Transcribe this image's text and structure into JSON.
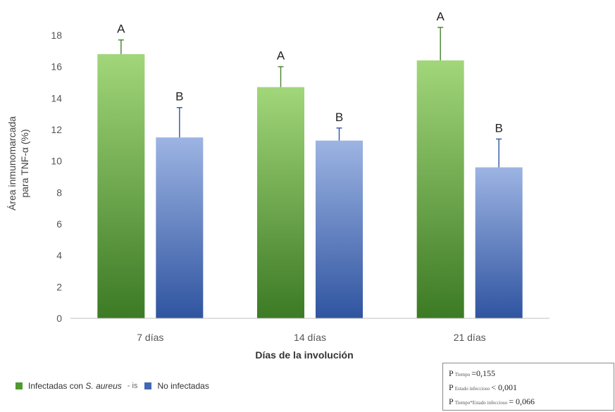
{
  "chart_data": {
    "type": "bar",
    "categories": [
      "7 días",
      "14 días",
      "21 días"
    ],
    "series": [
      {
        "name": "Infectadas con S. aureus",
        "values": [
          16.8,
          14.7,
          16.4
        ],
        "errors": [
          0.9,
          1.3,
          2.1
        ],
        "letters": [
          "A",
          "A",
          "A"
        ],
        "color": "#4e9a2e"
      },
      {
        "name": "No infectadas",
        "values": [
          11.5,
          11.3,
          9.6
        ],
        "errors": [
          1.9,
          0.8,
          1.8
        ],
        "letters": [
          "B",
          "B",
          "B"
        ],
        "color": "#4169b5"
      }
    ],
    "ylabel_line1": "Área inmunomarcada",
    "ylabel_line2": "para TNF-α (%)",
    "xlabel": "Días de la involución",
    "ylim": [
      0,
      18
    ],
    "yticks": [
      "0",
      "2",
      "4",
      "6",
      "8",
      "10",
      "12",
      "14",
      "16",
      "18"
    ],
    "grid": false
  },
  "legend": {
    "infected_prefix": "Infectadas con ",
    "infected_species": "S. aureus",
    "separator": "- is",
    "uninfected": "No infectadas"
  },
  "stats": [
    {
      "p": "P",
      "sub": "Tiempo",
      "value": "=0,155"
    },
    {
      "p": "P",
      "sub": "Estado infeccioso",
      "value": "< 0,001"
    },
    {
      "p": "P",
      "sub": "Tiempo*Estado infeccioso",
      "value": "= 0,066"
    }
  ]
}
